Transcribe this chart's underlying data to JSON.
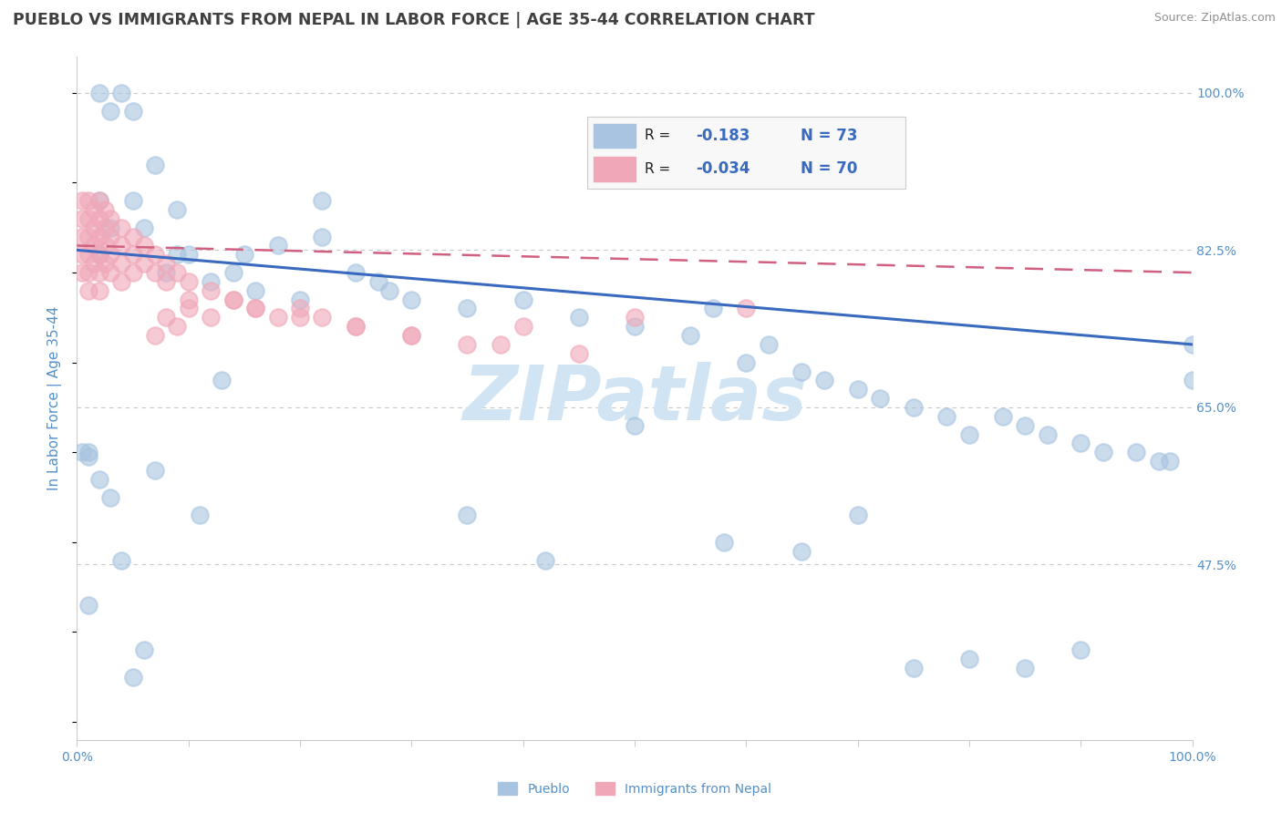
{
  "title": "PUEBLO VS IMMIGRANTS FROM NEPAL IN LABOR FORCE | AGE 35-44 CORRELATION CHART",
  "source": "Source: ZipAtlas.com",
  "ylabel": "In Labor Force | Age 35-44",
  "x_min": 0.0,
  "x_max": 1.0,
  "y_min": 0.28,
  "y_max": 1.04,
  "right_yticks": [
    1.0,
    0.825,
    0.65,
    0.475
  ],
  "right_yticklabels": [
    "100.0%",
    "82.5%",
    "65.0%",
    "47.5%"
  ],
  "blue_scatter_x": [
    0.005,
    0.01,
    0.01,
    0.01,
    0.02,
    0.02,
    0.02,
    0.03,
    0.03,
    0.04,
    0.05,
    0.05,
    0.06,
    0.07,
    0.08,
    0.09,
    0.1,
    0.12,
    0.14,
    0.16,
    0.2,
    0.22,
    0.25,
    0.27,
    0.3,
    0.35,
    0.4,
    0.45,
    0.5,
    0.55,
    0.57,
    0.6,
    0.62,
    0.65,
    0.67,
    0.7,
    0.72,
    0.75,
    0.78,
    0.8,
    0.83,
    0.85,
    0.87,
    0.9,
    0.92,
    0.95,
    0.97,
    0.98,
    1.0,
    1.0,
    0.02,
    0.03,
    0.04,
    0.05,
    0.06,
    0.07,
    0.09,
    0.11,
    0.13,
    0.15,
    0.18,
    0.22,
    0.28,
    0.35,
    0.42,
    0.5,
    0.58,
    0.65,
    0.7,
    0.75,
    0.8,
    0.85,
    0.9
  ],
  "blue_scatter_y": [
    0.6,
    0.595,
    0.43,
    0.6,
    0.82,
    0.88,
    1.0,
    0.98,
    0.85,
    1.0,
    0.88,
    0.98,
    0.85,
    0.92,
    0.8,
    0.87,
    0.82,
    0.79,
    0.8,
    0.78,
    0.77,
    0.88,
    0.8,
    0.79,
    0.77,
    0.76,
    0.77,
    0.75,
    0.74,
    0.73,
    0.76,
    0.7,
    0.72,
    0.69,
    0.68,
    0.67,
    0.66,
    0.65,
    0.64,
    0.62,
    0.64,
    0.63,
    0.62,
    0.61,
    0.6,
    0.6,
    0.59,
    0.59,
    0.72,
    0.68,
    0.57,
    0.55,
    0.48,
    0.35,
    0.38,
    0.58,
    0.82,
    0.53,
    0.68,
    0.82,
    0.83,
    0.84,
    0.78,
    0.53,
    0.48,
    0.63,
    0.5,
    0.49,
    0.53,
    0.36,
    0.37,
    0.36,
    0.38
  ],
  "pink_scatter_x": [
    0.005,
    0.005,
    0.005,
    0.005,
    0.005,
    0.01,
    0.01,
    0.01,
    0.01,
    0.01,
    0.01,
    0.015,
    0.015,
    0.015,
    0.015,
    0.02,
    0.02,
    0.02,
    0.02,
    0.02,
    0.02,
    0.025,
    0.025,
    0.025,
    0.025,
    0.03,
    0.03,
    0.03,
    0.03,
    0.04,
    0.04,
    0.04,
    0.04,
    0.05,
    0.05,
    0.05,
    0.06,
    0.06,
    0.07,
    0.07,
    0.08,
    0.08,
    0.09,
    0.1,
    0.1,
    0.12,
    0.14,
    0.16,
    0.18,
    0.2,
    0.22,
    0.25,
    0.3,
    0.35,
    0.4,
    0.5,
    0.6,
    0.07,
    0.08,
    0.09,
    0.1,
    0.12,
    0.14,
    0.16,
    0.2,
    0.25,
    0.3,
    0.38,
    0.45
  ],
  "pink_scatter_y": [
    0.88,
    0.86,
    0.84,
    0.82,
    0.8,
    0.88,
    0.86,
    0.84,
    0.82,
    0.8,
    0.78,
    0.87,
    0.85,
    0.83,
    0.81,
    0.88,
    0.86,
    0.84,
    0.82,
    0.8,
    0.78,
    0.87,
    0.85,
    0.83,
    0.81,
    0.86,
    0.84,
    0.82,
    0.8,
    0.85,
    0.83,
    0.81,
    0.79,
    0.84,
    0.82,
    0.8,
    0.83,
    0.81,
    0.82,
    0.8,
    0.81,
    0.79,
    0.8,
    0.79,
    0.77,
    0.78,
    0.77,
    0.76,
    0.75,
    0.76,
    0.75,
    0.74,
    0.73,
    0.72,
    0.74,
    0.75,
    0.76,
    0.73,
    0.75,
    0.74,
    0.76,
    0.75,
    0.77,
    0.76,
    0.75,
    0.74,
    0.73,
    0.72,
    0.71
  ],
  "blue_line_y_start": 0.825,
  "blue_line_y_end": 0.72,
  "pink_line_y_start": 0.83,
  "pink_line_y_end": 0.8,
  "blue_scatter_color": "#a8c4e0",
  "pink_scatter_color": "#f0a8b8",
  "blue_line_color": "#3a6abf",
  "pink_line_color": "#d06080",
  "grid_color": "#c8c8c8",
  "watermark_color": "#d0e4f4",
  "title_color": "#404040",
  "axis_color": "#5590c8",
  "legend_R_color": "#3a6abf",
  "legend_N_color": "#3a6abf",
  "legend_text_color": "#202020",
  "source_color": "#909090",
  "bg_color": "#ffffff"
}
